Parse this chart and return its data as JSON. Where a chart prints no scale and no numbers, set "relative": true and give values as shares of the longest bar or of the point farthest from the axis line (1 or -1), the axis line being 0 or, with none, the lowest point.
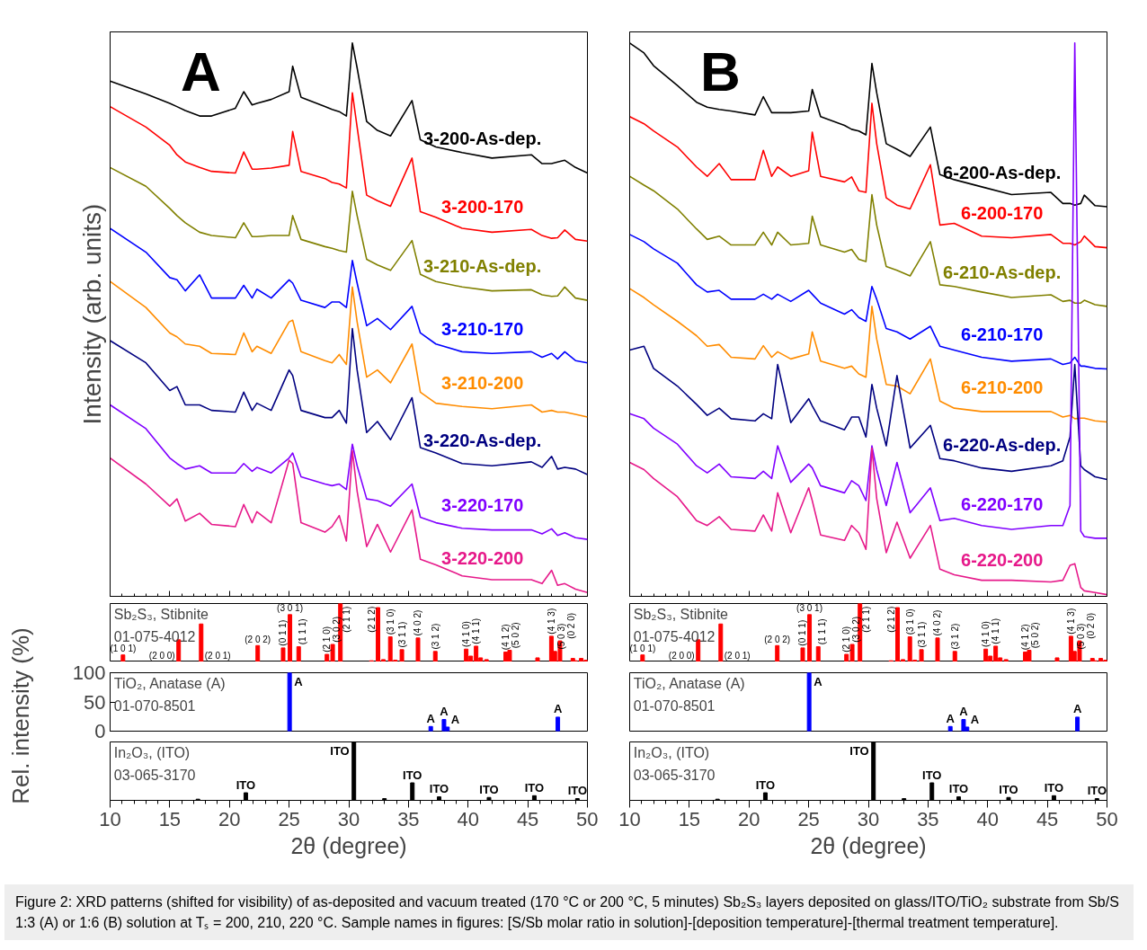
{
  "chart_data": [
    {
      "type": "line",
      "relative": true,
      "xlim": [
        10,
        50
      ],
      "xticks": [
        10,
        15,
        20,
        25,
        30,
        35,
        40,
        45,
        50
      ],
      "tick_labels": false,
      "ylabel": "Intensity (arb. units)",
      "annotations": [
        "A",
        "Figure 2: XRD patterns (shifted for visibility) of as-deposited and vacuum treated (170 °C or 200 °C, 5 minutes) Sb₂S₃ layers deposited on glass/ITO/TiO₂ substrate from Sb/S 1:3 (A) or 1:6 (B) solution at Tₛ = 200, 210, 220 °C. Sample names in figures: [S/Sb molar ratio in solution]-[deposition temperature]-[thermal treatment temperature]."
      ],
      "x": [
        10,
        13,
        15,
        15.6,
        16.3,
        17.5,
        18.5,
        20.5,
        21.2,
        21.9,
        22.3,
        23.5,
        25,
        25.3,
        26,
        28,
        28.6,
        29.2,
        29.8,
        30.3,
        30.7,
        31.5,
        32.4,
        33.5,
        35.3,
        36,
        37.3,
        39.5,
        42,
        45.3,
        46.2,
        47,
        47.5,
        48.1,
        49,
        50
      ],
      "series": [
        {
          "name": "3-200-As-dep.",
          "color": "#000000",
          "values": [
            0.931,
            0.908,
            0.891,
            0.885,
            0.878,
            0.868,
            0.868,
            0.882,
            0.912,
            0.888,
            0.891,
            0.898,
            0.912,
            0.958,
            0.902,
            0.885,
            0.88,
            0.876,
            0.868,
            1.0,
            0.955,
            0.858,
            0.842,
            0.832,
            0.896,
            0.825,
            0.812,
            0.802,
            0.792,
            0.798,
            0.782,
            0.782,
            0.785,
            0.788,
            0.775,
            0.765
          ]
        },
        {
          "name": "3-200-170",
          "color": "#ff0000",
          "values": [
            0.885,
            0.848,
            0.815,
            0.798,
            0.785,
            0.775,
            0.768,
            0.765,
            0.803,
            0.772,
            0.772,
            0.774,
            0.779,
            0.84,
            0.768,
            0.755,
            0.748,
            0.745,
            0.738,
            0.91,
            0.848,
            0.725,
            0.715,
            0.705,
            0.792,
            0.695,
            0.685,
            0.665,
            0.658,
            0.663,
            0.652,
            0.647,
            0.648,
            0.662,
            0.645,
            0.642
          ]
        },
        {
          "name": "3-210-As-dep.",
          "color": "#808000",
          "values": [
            0.775,
            0.741,
            0.701,
            0.688,
            0.675,
            0.658,
            0.652,
            0.648,
            0.675,
            0.65,
            0.65,
            0.652,
            0.652,
            0.688,
            0.645,
            0.632,
            0.629,
            0.625,
            0.622,
            0.732,
            0.688,
            0.609,
            0.599,
            0.589,
            0.643,
            0.582,
            0.569,
            0.559,
            0.552,
            0.554,
            0.545,
            0.542,
            0.543,
            0.559,
            0.539,
            0.535
          ]
        },
        {
          "name": "3-210-170",
          "color": "#0000ff",
          "values": [
            0.665,
            0.622,
            0.576,
            0.572,
            0.552,
            0.581,
            0.539,
            0.539,
            0.562,
            0.539,
            0.555,
            0.539,
            0.572,
            0.566,
            0.535,
            0.522,
            0.532,
            0.532,
            0.522,
            0.607,
            0.566,
            0.489,
            0.502,
            0.482,
            0.524,
            0.476,
            0.456,
            0.442,
            0.439,
            0.442,
            0.432,
            0.439,
            0.429,
            0.442,
            0.426,
            0.422
          ]
        },
        {
          "name": "3-210-200",
          "color": "#ff8c00",
          "values": [
            0.569,
            0.522,
            0.476,
            0.469,
            0.456,
            0.452,
            0.439,
            0.437,
            0.476,
            0.442,
            0.452,
            0.439,
            0.496,
            0.499,
            0.442,
            0.426,
            0.422,
            0.437,
            0.419,
            0.559,
            0.496,
            0.396,
            0.409,
            0.386,
            0.456,
            0.369,
            0.349,
            0.343,
            0.339,
            0.346,
            0.333,
            0.336,
            0.333,
            0.333,
            0.329,
            0.324
          ]
        },
        {
          "name": "3-220-As-dep.",
          "color": "#000080",
          "values": [
            0.462,
            0.422,
            0.372,
            0.379,
            0.346,
            0.346,
            0.336,
            0.333,
            0.369,
            0.336,
            0.349,
            0.336,
            0.409,
            0.399,
            0.336,
            0.323,
            0.323,
            0.336,
            0.313,
            0.484,
            0.409,
            0.296,
            0.316,
            0.283,
            0.359,
            0.269,
            0.259,
            0.24,
            0.236,
            0.243,
            0.233,
            0.253,
            0.23,
            0.233,
            0.23,
            0.22
          ]
        },
        {
          "name": "3-220-170",
          "color": "#8000ff",
          "values": [
            0.346,
            0.303,
            0.25,
            0.24,
            0.23,
            0.236,
            0.223,
            0.223,
            0.24,
            0.226,
            0.233,
            0.223,
            0.25,
            0.259,
            0.216,
            0.203,
            0.2,
            0.203,
            0.193,
            0.275,
            0.236,
            0.176,
            0.173,
            0.163,
            0.203,
            0.143,
            0.133,
            0.123,
            0.12,
            0.12,
            0.113,
            0.122,
            0.11,
            0.115,
            0.106,
            0.103
          ]
        },
        {
          "name": "3-220-200",
          "color": "#e6198a",
          "values": [
            0.25,
            0.203,
            0.163,
            0.176,
            0.136,
            0.15,
            0.13,
            0.126,
            0.166,
            0.133,
            0.153,
            0.133,
            0.246,
            0.24,
            0.133,
            0.116,
            0.126,
            0.146,
            0.1,
            0.263,
            0.19,
            0.09,
            0.13,
            0.08,
            0.156,
            0.067,
            0.057,
            0.037,
            0.03,
            0.03,
            0.023,
            0.047,
            0.02,
            0.023,
            0.013,
            0.007
          ]
        }
      ]
    },
    {
      "type": "bar",
      "relative": true,
      "title": "Sb₂S₃, Stibnite",
      "subtitle": "01-075-4012",
      "tick_labels": false,
      "xlim": [
        10,
        50
      ],
      "x": [
        11.08,
        15.74,
        17.63,
        22.37,
        24.5,
        25.07,
        25.8,
        28.17,
        28.65,
        29.3,
        31.9,
        32.45,
        32.9,
        33.48,
        33.9,
        34.45,
        35.8,
        37.25,
        39.84,
        40.22,
        40.67,
        41.05,
        41.54,
        43.15,
        43.48,
        45.82,
        46.98,
        47.27,
        47.7,
        48.78,
        48.99,
        49.48,
        49.88
      ],
      "series": [
        {
          "color": "#ff0000",
          "values": [
            0.12,
            0.38,
            0.65,
            0.28,
            0.24,
            0.81,
            0.26,
            0.13,
            0.3,
            1,
            0.02,
            0.93,
            0.04,
            0.43,
            0.03,
            0.21,
            0.41,
            0.18,
            0.22,
            0.1,
            0.27,
            0.07,
            0.04,
            0.17,
            0.2,
            0.07,
            0.44,
            0.18,
            0.36,
            0.06,
            0.02,
            0.06,
            0.03
          ]
        }
      ],
      "annotations": [
        {
          "text": "(1 0 1)",
          "x": 11.08,
          "y": 0.12
        },
        {
          "text": "(2 0 0)",
          "x": 15.74,
          "y": 0
        },
        {
          "text": "(2 0 1)",
          "x": 17.63,
          "y": 0
        },
        {
          "text": "(2 0 2)",
          "x": 22.37,
          "y": 0.28
        },
        {
          "text": "(0 1 1)",
          "x": 24.5,
          "y": 0.24
        },
        {
          "text": "(3 0 1)",
          "x": 25.07,
          "y": 0.81
        },
        {
          "text": "(1 1 1)",
          "x": 25.8,
          "y": 0.26
        },
        {
          "text": "(2 1 0)",
          "x": 28.17,
          "y": 0.13
        },
        {
          "text": "(3 0 2)",
          "x": 28.65,
          "y": 0.3
        },
        {
          "text": "(2 1 1)",
          "x": 29.3,
          "y": 1
        },
        {
          "text": "(2 1 2)",
          "x": 32.45,
          "y": 0.93
        },
        {
          "text": "(3 1 0)",
          "x": 33.48,
          "y": 0.43
        },
        {
          "text": "(3 1 1)",
          "x": 34.45,
          "y": 0.21
        },
        {
          "text": "(4 0 2)",
          "x": 35.8,
          "y": 0.41
        },
        {
          "text": "(3 1 2)",
          "x": 37.25,
          "y": 0.18
        },
        {
          "text": "(4 1 0)",
          "x": 39.84,
          "y": 0.22
        },
        {
          "text": "(4 1 1)",
          "x": 40.67,
          "y": 0.27
        },
        {
          "text": "(4 1 2)",
          "x": 43.15,
          "y": 0.17
        },
        {
          "text": "(5 0 2)",
          "x": 43.48,
          "y": 0.2
        },
        {
          "text": "(4 1 3)",
          "x": 46.98,
          "y": 0.44
        },
        {
          "text": "(5 0 3)",
          "x": 47.27,
          "y": 0.18
        },
        {
          "text": "(0 2 0)",
          "x": 47.7,
          "y": 0.36
        }
      ]
    },
    {
      "type": "bar",
      "title": "TiO₂, Anatase (A)",
      "subtitle": "01-070-8501",
      "ylim": [
        0,
        100
      ],
      "yticks": [
        0,
        50,
        100
      ],
      "tick_labels": "y",
      "xlim": [
        10,
        50
      ],
      "ylabel": "Rel. intensity (%)",
      "x": [
        25.04,
        36.87,
        37.98,
        38.27,
        47.52
      ],
      "series": [
        {
          "color": "#0000ff",
          "values": [
            100,
            8,
            20,
            7,
            24
          ]
        }
      ],
      "annotations": [
        {
          "text": "A",
          "x": 25.04,
          "y": 100
        },
        {
          "text": "A",
          "x": 36.87,
          "y": 8
        },
        {
          "text": "A",
          "x": 37.98,
          "y": 20
        },
        {
          "text": "A",
          "x": 38.27,
          "y": 7
        },
        {
          "text": "A",
          "x": 47.52,
          "y": 24
        }
      ]
    },
    {
      "type": "bar",
      "relative": true,
      "title": "In₂O₃, (ITO)",
      "subtitle": "03-065-3170",
      "tick_labels": "x",
      "xlim": [
        10,
        50
      ],
      "xticks": [
        10,
        15,
        20,
        25,
        30,
        35,
        40,
        45,
        50
      ],
      "xlabel": "2θ (degree)",
      "x": [
        17.36,
        21.37,
        30.43,
        32.99,
        35.33,
        37.57,
        41.75,
        45.55,
        49.16
      ],
      "series": [
        {
          "color": "#000000",
          "values": [
            0.02,
            0.13,
            1,
            0.03,
            0.3,
            0.06,
            0.05,
            0.08,
            0.03
          ]
        }
      ],
      "annotations": [
        {
          "text": "ITO",
          "x": 21.37,
          "y": 0.13
        },
        {
          "text": "ITO",
          "x": 30.43,
          "y": 1
        },
        {
          "text": "ITO",
          "x": 35.33,
          "y": 0.3
        },
        {
          "text": "ITO",
          "x": 37.57,
          "y": 0.06
        },
        {
          "text": "ITO",
          "x": 41.75,
          "y": 0.05
        },
        {
          "text": "ITO",
          "x": 45.55,
          "y": 0.08
        },
        {
          "text": "ITO",
          "x": 49.16,
          "y": 0.03
        }
      ]
    },
    {
      "type": "line",
      "relative": true,
      "xlim": [
        10,
        50
      ],
      "xticks": [
        10,
        15,
        20,
        25,
        30,
        35,
        40,
        45,
        50
      ],
      "tick_labels": false,
      "annotations": [
        "B"
      ],
      "x": [
        10,
        11.2,
        12,
        14,
        15.6,
        16.5,
        17.5,
        18.5,
        20.5,
        21.2,
        21.9,
        22.4,
        23.5,
        25,
        25.3,
        26,
        28,
        28.6,
        29.2,
        29.8,
        30.3,
        30.7,
        31.5,
        32.4,
        33.5,
        35.2,
        36,
        37.2,
        39.5,
        42,
        45.3,
        46.3,
        46.9,
        47.3,
        47.8,
        48.1,
        49,
        50
      ],
      "series": [
        {
          "name": "6-200-As-dep.",
          "color": "#000000",
          "values": [
            1.0,
            0.982,
            0.959,
            0.923,
            0.893,
            0.884,
            0.88,
            0.877,
            0.87,
            0.903,
            0.874,
            0.874,
            0.874,
            0.877,
            0.916,
            0.867,
            0.851,
            0.844,
            0.841,
            0.834,
            0.963,
            0.91,
            0.818,
            0.808,
            0.795,
            0.848,
            0.762,
            0.753,
            0.74,
            0.726,
            0.73,
            0.71,
            0.71,
            0.707,
            0.71,
            0.725,
            0.706,
            0.704
          ]
        },
        {
          "name": "6-200-170",
          "color": "#ff0000",
          "values": [
            0.867,
            0.854,
            0.841,
            0.812,
            0.776,
            0.759,
            0.782,
            0.753,
            0.753,
            0.806,
            0.759,
            0.776,
            0.759,
            0.769,
            0.839,
            0.759,
            0.749,
            0.758,
            0.733,
            0.73,
            0.891,
            0.818,
            0.72,
            0.707,
            0.7,
            0.78,
            0.671,
            0.674,
            0.651,
            0.648,
            0.654,
            0.638,
            0.638,
            0.635,
            0.641,
            0.651,
            0.632,
            0.63
          ]
        },
        {
          "name": "6-210-As-dep.",
          "color": "#808000",
          "values": [
            0.759,
            0.743,
            0.733,
            0.7,
            0.664,
            0.645,
            0.651,
            0.635,
            0.635,
            0.658,
            0.635,
            0.658,
            0.635,
            0.638,
            0.687,
            0.635,
            0.622,
            0.627,
            0.609,
            0.605,
            0.726,
            0.671,
            0.596,
            0.589,
            0.579,
            0.641,
            0.563,
            0.56,
            0.55,
            0.54,
            0.545,
            0.533,
            0.535,
            0.53,
            0.53,
            0.535,
            0.527,
            0.524
          ]
        },
        {
          "name": "6-210-170",
          "color": "#0000ff",
          "values": [
            0.654,
            0.641,
            0.628,
            0.602,
            0.563,
            0.55,
            0.553,
            0.537,
            0.537,
            0.546,
            0.537,
            0.546,
            0.533,
            0.553,
            0.546,
            0.53,
            0.51,
            0.518,
            0.504,
            0.497,
            0.56,
            0.537,
            0.484,
            0.478,
            0.465,
            0.488,
            0.452,
            0.445,
            0.432,
            0.425,
            0.429,
            0.419,
            0.422,
            0.432,
            0.416,
            0.416,
            0.412,
            0.411
          ]
        },
        {
          "name": "6-210-200",
          "color": "#ff8c00",
          "values": [
            0.556,
            0.54,
            0.527,
            0.497,
            0.471,
            0.452,
            0.455,
            0.432,
            0.429,
            0.453,
            0.432,
            0.442,
            0.429,
            0.438,
            0.478,
            0.425,
            0.412,
            0.416,
            0.402,
            0.396,
            0.524,
            0.465,
            0.383,
            0.38,
            0.366,
            0.429,
            0.353,
            0.34,
            0.334,
            0.334,
            0.334,
            0.324,
            0.327,
            0.321,
            0.322,
            0.322,
            0.317,
            0.315
          ]
        },
        {
          "name": "6-220-As-dep.",
          "color": "#000080",
          "values": [
            0.445,
            0.452,
            0.412,
            0.38,
            0.347,
            0.327,
            0.34,
            0.321,
            0.317,
            0.33,
            0.321,
            0.419,
            0.314,
            0.357,
            0.344,
            0.317,
            0.301,
            0.324,
            0.324,
            0.288,
            0.383,
            0.34,
            0.272,
            0.399,
            0.268,
            0.309,
            0.249,
            0.245,
            0.232,
            0.226,
            0.236,
            0.245,
            0.288,
            0.419,
            0.236,
            0.229,
            0.216,
            0.211
          ]
        },
        {
          "name": "6-220-170",
          "color": "#8000ff",
          "values": [
            0.33,
            0.321,
            0.304,
            0.275,
            0.236,
            0.223,
            0.239,
            0.216,
            0.213,
            0.226,
            0.213,
            0.272,
            0.206,
            0.239,
            0.232,
            0.2,
            0.187,
            0.209,
            0.2,
            0.173,
            0.272,
            0.229,
            0.164,
            0.242,
            0.151,
            0.196,
            0.137,
            0.141,
            0.128,
            0.121,
            0.128,
            0.128,
            0.164,
            1.0,
            0.118,
            0.108,
            0.105,
            0.105
          ]
        },
        {
          "name": "6-220-200",
          "color": "#e6198a",
          "values": [
            0.242,
            0.229,
            0.213,
            0.18,
            0.137,
            0.128,
            0.144,
            0.121,
            0.118,
            0.147,
            0.118,
            0.187,
            0.115,
            0.196,
            0.173,
            0.111,
            0.101,
            0.128,
            0.115,
            0.085,
            0.268,
            0.177,
            0.079,
            0.134,
            0.069,
            0.128,
            0.049,
            0.039,
            0.029,
            0.029,
            0.026,
            0.029,
            0.056,
            0.059,
            0.016,
            0.01,
            0.007,
            0.003
          ]
        }
      ]
    },
    {
      "type": "bar",
      "relative": true,
      "title": "Sb₂S₃, Stibnite",
      "subtitle": "01-075-4012",
      "tick_labels": false,
      "xlim": [
        10,
        50
      ],
      "x": [
        11.08,
        15.74,
        17.63,
        22.37,
        24.5,
        25.07,
        25.8,
        28.17,
        28.65,
        29.3,
        31.9,
        32.45,
        32.9,
        33.48,
        33.9,
        34.45,
        35.8,
        37.25,
        39.84,
        40.22,
        40.67,
        41.05,
        41.54,
        43.15,
        43.48,
        45.82,
        46.98,
        47.27,
        47.7,
        48.78,
        48.99,
        49.48,
        49.88
      ],
      "series": [
        {
          "color": "#ff0000",
          "values": [
            0.12,
            0.38,
            0.65,
            0.28,
            0.24,
            0.81,
            0.26,
            0.13,
            0.3,
            1,
            0.02,
            0.93,
            0.04,
            0.43,
            0.03,
            0.21,
            0.41,
            0.18,
            0.22,
            0.1,
            0.27,
            0.07,
            0.04,
            0.17,
            0.2,
            0.07,
            0.44,
            0.18,
            0.36,
            0.06,
            0.02,
            0.06,
            0.03
          ]
        }
      ],
      "annotations": [
        {
          "text": "(1 0 1)",
          "x": 11.08,
          "y": 0.12
        },
        {
          "text": "(2 0 0)",
          "x": 15.74,
          "y": 0
        },
        {
          "text": "(2 0 1)",
          "x": 17.63,
          "y": 0
        },
        {
          "text": "(2 0 2)",
          "x": 22.37,
          "y": 0.28
        },
        {
          "text": "(0 1 1)",
          "x": 24.5,
          "y": 0.24
        },
        {
          "text": "(3 0 1)",
          "x": 25.07,
          "y": 0.81
        },
        {
          "text": "(1 1 1)",
          "x": 25.8,
          "y": 0.26
        },
        {
          "text": "(2 1 0)",
          "x": 28.17,
          "y": 0.13
        },
        {
          "text": "(3 0 2)",
          "x": 28.65,
          "y": 0.3
        },
        {
          "text": "(2 1 1)",
          "x": 29.3,
          "y": 1
        },
        {
          "text": "(2 1 2)",
          "x": 32.45,
          "y": 0.93
        },
        {
          "text": "(3 1 0)",
          "x": 33.48,
          "y": 0.43
        },
        {
          "text": "(3 1 1)",
          "x": 34.45,
          "y": 0.21
        },
        {
          "text": "(4 0 2)",
          "x": 35.8,
          "y": 0.41
        },
        {
          "text": "(3 1 2)",
          "x": 37.25,
          "y": 0.18
        },
        {
          "text": "(4 1 0)",
          "x": 39.84,
          "y": 0.22
        },
        {
          "text": "(4 1 1)",
          "x": 40.67,
          "y": 0.27
        },
        {
          "text": "(4 1 2)",
          "x": 43.15,
          "y": 0.17
        },
        {
          "text": "(5 0 2)",
          "x": 43.48,
          "y": 0.2
        },
        {
          "text": "(4 1 3)",
          "x": 46.98,
          "y": 0.44
        },
        {
          "text": "(5 0 3)",
          "x": 47.27,
          "y": 0.18
        },
        {
          "text": "(0 2 0)",
          "x": 47.7,
          "y": 0.36
        }
      ]
    },
    {
      "type": "bar",
      "title": "TiO₂, Anatase (A)",
      "subtitle": "01-070-8501",
      "ylim": [
        0,
        100
      ],
      "tick_labels": false,
      "xlim": [
        10,
        50
      ],
      "x": [
        25.04,
        36.87,
        37.98,
        38.27,
        47.52
      ],
      "series": [
        {
          "color": "#0000ff",
          "values": [
            100,
            8,
            20,
            7,
            24
          ]
        }
      ],
      "annotations": [
        {
          "text": "A",
          "x": 25.04,
          "y": 100
        },
        {
          "text": "A",
          "x": 36.87,
          "y": 8
        },
        {
          "text": "A",
          "x": 37.98,
          "y": 20
        },
        {
          "text": "A",
          "x": 38.27,
          "y": 7
        },
        {
          "text": "A",
          "x": 47.52,
          "y": 24
        }
      ]
    },
    {
      "type": "bar",
      "relative": true,
      "title": "In₂O₃, (ITO)",
      "subtitle": "03-065-3170",
      "tick_labels": "x",
      "xlim": [
        10,
        50
      ],
      "xticks": [
        10,
        15,
        20,
        25,
        30,
        35,
        40,
        45,
        50
      ],
      "xlabel": "2θ (degree)",
      "x": [
        17.36,
        21.37,
        30.43,
        32.99,
        35.33,
        37.57,
        41.75,
        45.55,
        49.16
      ],
      "series": [
        {
          "color": "#000000",
          "values": [
            0.02,
            0.13,
            1,
            0.03,
            0.3,
            0.06,
            0.05,
            0.08,
            0.03
          ]
        }
      ],
      "annotations": [
        {
          "text": "ITO",
          "x": 21.37,
          "y": 0.13
        },
        {
          "text": "ITO",
          "x": 30.43,
          "y": 1
        },
        {
          "text": "ITO",
          "x": 35.33,
          "y": 0.3
        },
        {
          "text": "ITO",
          "x": 37.57,
          "y": 0.06
        },
        {
          "text": "ITO",
          "x": 41.75,
          "y": 0.05
        },
        {
          "text": "ITO",
          "x": 45.55,
          "y": 0.08
        },
        {
          "text": "ITO",
          "x": 49.16,
          "y": 0.03
        }
      ]
    }
  ]
}
